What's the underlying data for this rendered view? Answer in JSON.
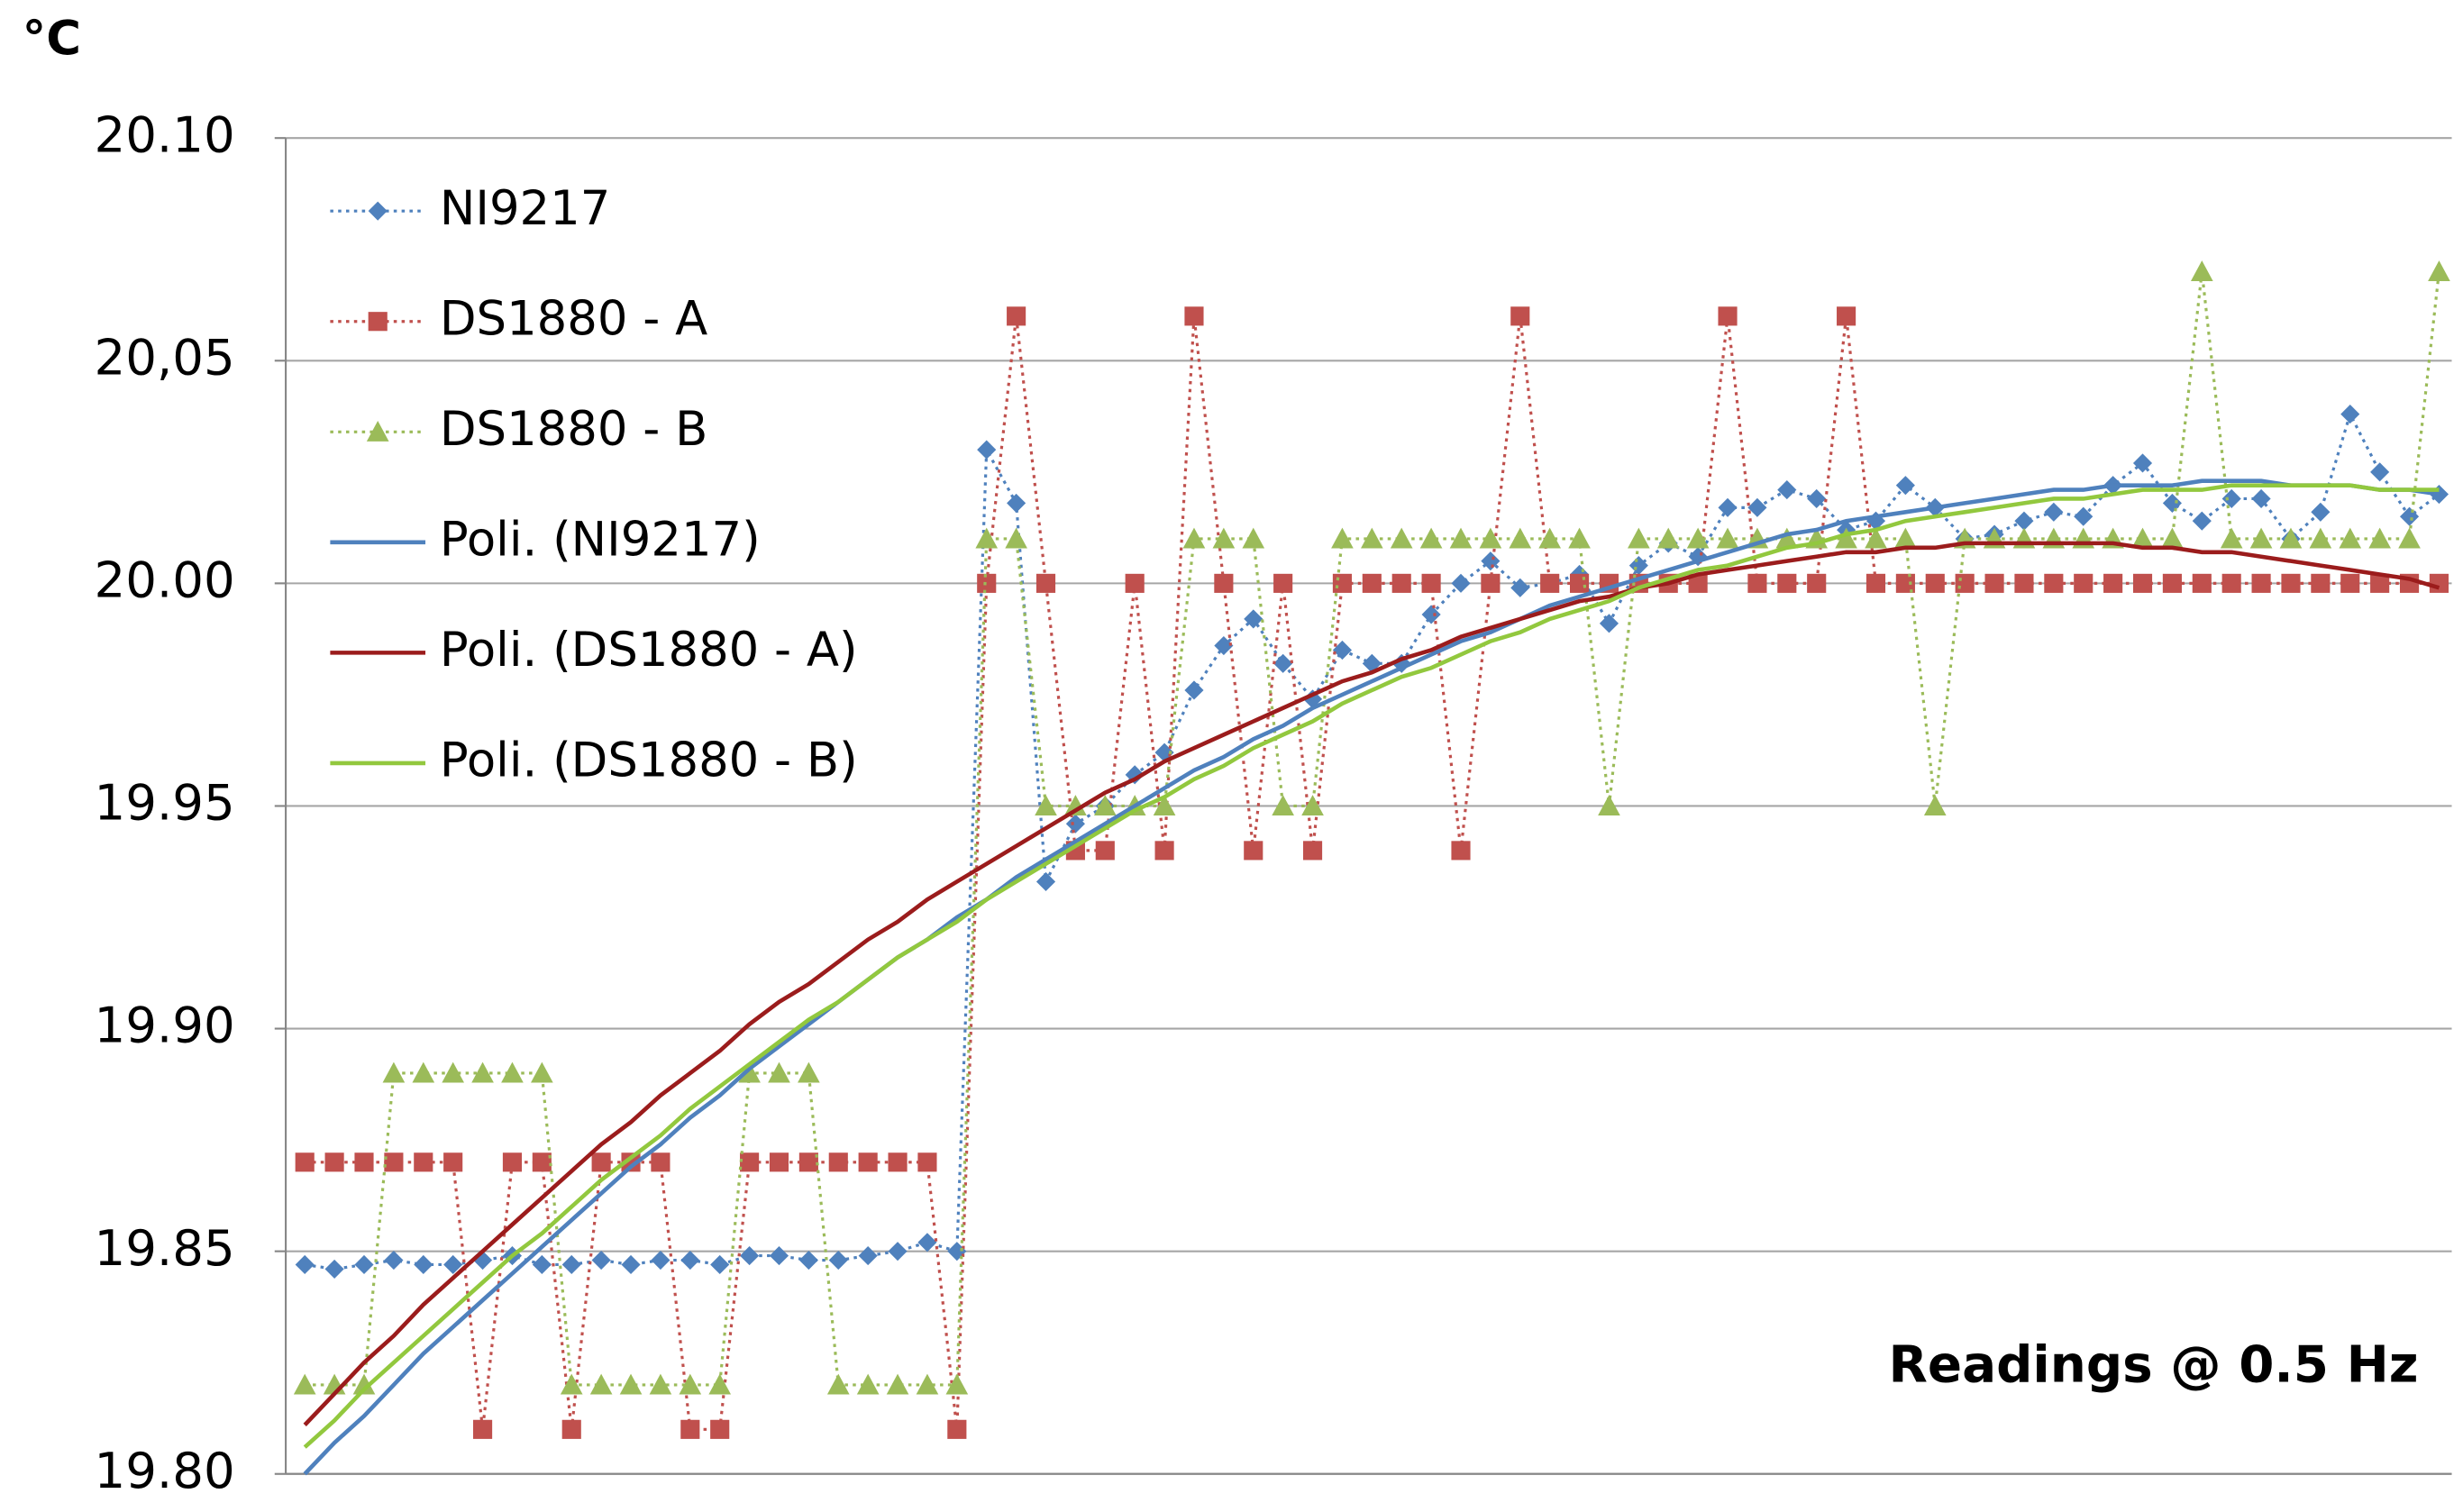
{
  "chart_data": {
    "type": "line",
    "unit_label": "°C",
    "annotation": "Readings @ 0.5 Hz",
    "categories": [
      null,
      null,
      null,
      null,
      null,
      null,
      null,
      null,
      null,
      null,
      null,
      null,
      null,
      null,
      null,
      null,
      null,
      null,
      null,
      null,
      null,
      null,
      null,
      null,
      null,
      null,
      null,
      null,
      null,
      null,
      null,
      null,
      null,
      null,
      null,
      null,
      null,
      null,
      null,
      null,
      null,
      null,
      null,
      null,
      null,
      null,
      null,
      null,
      null,
      null,
      null,
      null,
      null,
      null,
      null,
      null,
      null,
      null,
      null,
      null,
      null,
      null,
      null,
      null,
      null,
      null,
      null,
      null,
      null,
      null,
      null,
      null,
      null
    ],
    "ylim": [
      19.8,
      20.1
    ],
    "yticks": [
      {
        "value": 19.8,
        "label": "19.80"
      },
      19.85,
      {
        "value": 19.9,
        "label": "19.90"
      },
      19.95,
      {
        "value": 20.0,
        "label": "20.00"
      },
      {
        "value": 20.05,
        "label": "20,05"
      },
      {
        "value": 20.1,
        "label": "20.10"
      }
    ],
    "grid": true,
    "legend": "upper left",
    "series": [
      {
        "name": "NI9217",
        "color": "#4f81bd",
        "marker": "diamond",
        "line": "dotted",
        "values": [
          19.847,
          19.846,
          19.847,
          19.848,
          19.847,
          19.847,
          19.848,
          19.849,
          19.847,
          19.847,
          19.848,
          19.847,
          19.848,
          19.848,
          19.847,
          19.849,
          19.849,
          19.848,
          19.848,
          19.849,
          19.85,
          19.852,
          19.85,
          20.03,
          20.018,
          19.933,
          19.946,
          19.95,
          19.957,
          19.962,
          19.976,
          19.986,
          19.992,
          19.982,
          19.974,
          19.985,
          19.982,
          19.982,
          19.993,
          20.0,
          20.005,
          19.999,
          20.0,
          20.002,
          19.991,
          20.004,
          20.009,
          20.006,
          20.017,
          20.017,
          20.021,
          20.019,
          20.012,
          20.014,
          20.022,
          20.017,
          20.01,
          20.011,
          20.014,
          20.016,
          20.015,
          20.022,
          20.027,
          20.018,
          20.014,
          20.019,
          20.019,
          20.01,
          20.016,
          20.038,
          20.025,
          20.015,
          20.02
        ]
      },
      {
        "name": "DS1880 - A",
        "color": "#c0504d",
        "marker": "square",
        "line": "dotted",
        "values": [
          19.87,
          19.87,
          19.87,
          19.87,
          19.87,
          19.87,
          19.81,
          19.87,
          19.87,
          19.81,
          19.87,
          19.87,
          19.87,
          19.81,
          19.81,
          19.87,
          19.87,
          19.87,
          19.87,
          19.87,
          19.87,
          19.87,
          19.81,
          20.0,
          20.06,
          20.0,
          19.94,
          19.94,
          20.0,
          19.94,
          20.06,
          20.0,
          19.94,
          20.0,
          19.94,
          20.0,
          20.0,
          20.0,
          20.0,
          19.94,
          20.0,
          20.06,
          20.0,
          20.0,
          20.0,
          20.0,
          20.0,
          20.0,
          20.06,
          20.0,
          20.0,
          20.0,
          20.06,
          20.0,
          20.0,
          20.0,
          20.0,
          20.0,
          20.0,
          20.0,
          20.0,
          20.0,
          20.0,
          20.0,
          20.0,
          20.0,
          20.0,
          20.0,
          20.0,
          20.0,
          20.0,
          20.0,
          20.0
        ]
      },
      {
        "name": "DS1880 - B",
        "color": "#9bbb59",
        "marker": "triangle",
        "line": "dotted",
        "values": [
          19.82,
          19.82,
          19.82,
          19.89,
          19.89,
          19.89,
          19.89,
          19.89,
          19.89,
          19.82,
          19.82,
          19.82,
          19.82,
          19.82,
          19.82,
          19.89,
          19.89,
          19.89,
          19.82,
          19.82,
          19.82,
          19.82,
          19.82,
          20.01,
          20.01,
          19.95,
          19.95,
          19.95,
          19.95,
          19.95,
          20.01,
          20.01,
          20.01,
          19.95,
          19.95,
          20.01,
          20.01,
          20.01,
          20.01,
          20.01,
          20.01,
          20.01,
          20.01,
          20.01,
          19.95,
          20.01,
          20.01,
          20.01,
          20.01,
          20.01,
          20.01,
          20.01,
          20.01,
          20.01,
          20.01,
          19.95,
          20.01,
          20.01,
          20.01,
          20.01,
          20.01,
          20.01,
          20.01,
          20.01,
          20.07,
          20.01,
          20.01,
          20.01,
          20.01,
          20.01,
          20.01,
          20.01,
          20.07
        ]
      },
      {
        "name": "Poli. (NI9217)",
        "color": "#4f81bd",
        "line": "solid",
        "values": [
          19.8,
          19.807,
          19.813,
          19.82,
          19.827,
          19.833,
          19.839,
          19.845,
          19.851,
          19.857,
          19.863,
          19.869,
          19.874,
          19.88,
          19.885,
          19.891,
          19.896,
          19.901,
          19.906,
          19.911,
          19.916,
          19.92,
          19.925,
          19.929,
          19.934,
          19.938,
          19.942,
          19.946,
          19.95,
          19.954,
          19.958,
          19.961,
          19.965,
          19.968,
          19.972,
          19.975,
          19.978,
          19.981,
          19.984,
          19.987,
          19.989,
          19.992,
          19.995,
          19.997,
          19.999,
          20.001,
          20.003,
          20.005,
          20.007,
          20.009,
          20.011,
          20.012,
          20.014,
          20.015,
          20.016,
          20.017,
          20.018,
          20.019,
          20.02,
          20.021,
          20.021,
          20.022,
          20.022,
          20.022,
          20.023,
          20.023,
          20.023,
          20.022,
          20.022,
          20.022,
          20.021,
          20.021,
          20.02
        ]
      },
      {
        "name": "Poli. (DS1880 - A)",
        "color": "#9b1c1c",
        "line": "solid",
        "values": [
          19.811,
          19.818,
          19.825,
          19.831,
          19.838,
          19.844,
          19.85,
          19.856,
          19.862,
          19.868,
          19.874,
          19.879,
          19.885,
          19.89,
          19.895,
          19.901,
          19.906,
          19.91,
          19.915,
          19.92,
          19.924,
          19.929,
          19.933,
          19.937,
          19.941,
          19.945,
          19.949,
          19.953,
          19.956,
          19.96,
          19.963,
          19.966,
          19.969,
          19.972,
          19.975,
          19.978,
          19.98,
          19.983,
          19.985,
          19.988,
          19.99,
          19.992,
          19.994,
          19.996,
          19.997,
          19.999,
          20.0,
          20.002,
          20.003,
          20.004,
          20.005,
          20.006,
          20.007,
          20.007,
          20.008,
          20.008,
          20.009,
          20.009,
          20.009,
          20.009,
          20.009,
          20.009,
          20.008,
          20.008,
          20.007,
          20.007,
          20.006,
          20.005,
          20.004,
          20.003,
          20.002,
          20.001,
          19.999
        ]
      },
      {
        "name": "Poli. (DS1880 - B)",
        "color": "#92c83e",
        "line": "solid",
        "values": [
          19.806,
          19.812,
          19.819,
          19.825,
          19.831,
          19.837,
          19.843,
          19.849,
          19.854,
          19.86,
          19.866,
          19.871,
          19.876,
          19.882,
          19.887,
          19.892,
          19.897,
          19.902,
          19.906,
          19.911,
          19.916,
          19.92,
          19.924,
          19.929,
          19.933,
          19.937,
          19.941,
          19.945,
          19.949,
          19.952,
          19.956,
          19.959,
          19.963,
          19.966,
          19.969,
          19.973,
          19.976,
          19.979,
          19.981,
          19.984,
          19.987,
          19.989,
          19.992,
          19.994,
          19.996,
          19.999,
          20.001,
          20.003,
          20.004,
          20.006,
          20.008,
          20.009,
          20.011,
          20.012,
          20.014,
          20.015,
          20.016,
          20.017,
          20.018,
          20.019,
          20.019,
          20.02,
          20.021,
          20.021,
          20.021,
          20.022,
          20.022,
          20.022,
          20.022,
          20.022,
          20.021,
          20.021,
          20.021
        ]
      }
    ]
  }
}
